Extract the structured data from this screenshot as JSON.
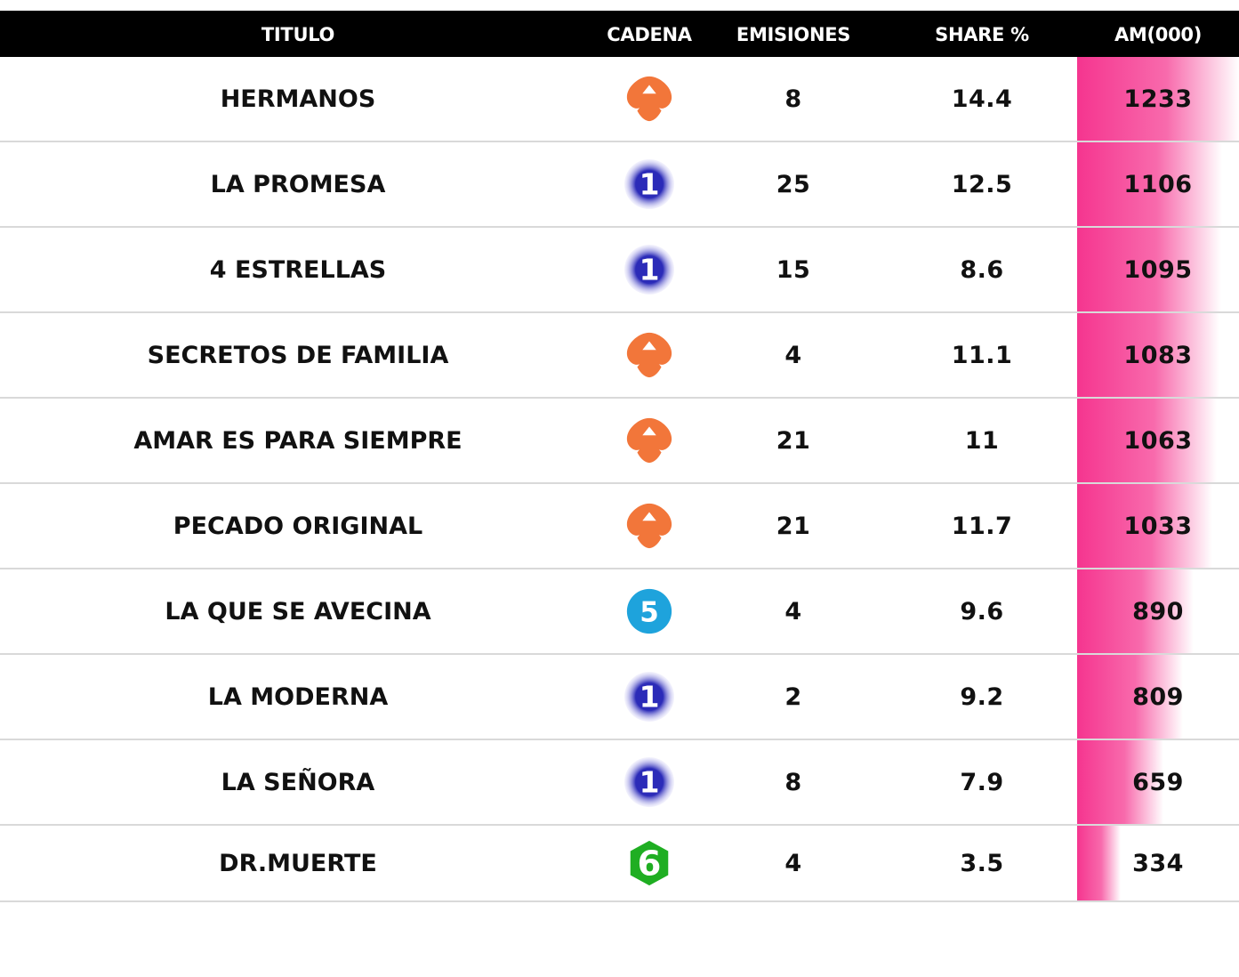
{
  "headers": {
    "titulo": "TITULO",
    "cadena": "CADENA",
    "emisiones": "EMISIONES",
    "share": "SHARE %",
    "am": "AM(000)"
  },
  "colors": {
    "header_bg": "#000000",
    "bar_pink": "#f5358f",
    "antena3": "#f2763a",
    "la1": "#2b2bb8",
    "telecinco": "#1ea3dc",
    "lasexta": "#1fae22"
  },
  "chart_data": {
    "type": "table",
    "columns": [
      "TITULO",
      "CADENA",
      "EMISIONES",
      "SHARE %",
      "AM(000)"
    ],
    "bar_column": "AM(000)",
    "bar_max": 1233,
    "rows": [
      {
        "titulo": "HERMANOS",
        "cadena": "antena3-logo",
        "emisiones": "8",
        "share": "14.4",
        "am": "1233",
        "am_value": 1233
      },
      {
        "titulo": "LA PROMESA",
        "cadena": "la1-logo",
        "emisiones": "25",
        "share": "12.5",
        "am": "1106",
        "am_value": 1106
      },
      {
        "titulo": "4 ESTRELLAS",
        "cadena": "la1-logo",
        "emisiones": "15",
        "share": "8.6",
        "am": "1095",
        "am_value": 1095
      },
      {
        "titulo": "SECRETOS DE FAMILIA",
        "cadena": "antena3-logo",
        "emisiones": "4",
        "share": "11.1",
        "am": "1083",
        "am_value": 1083
      },
      {
        "titulo": "AMAR ES PARA SIEMPRE",
        "cadena": "antena3-logo",
        "emisiones": "21",
        "share": "11",
        "am": "1063",
        "am_value": 1063
      },
      {
        "titulo": "PECADO ORIGINAL",
        "cadena": "antena3-logo",
        "emisiones": "21",
        "share": "11.7",
        "am": "1033",
        "am_value": 1033
      },
      {
        "titulo": "LA QUE SE AVECINA",
        "cadena": "telecinco-logo",
        "emisiones": "4",
        "share": "9.6",
        "am": "890",
        "am_value": 890
      },
      {
        "titulo": "LA MODERNA",
        "cadena": "la1-logo",
        "emisiones": "2",
        "share": "9.2",
        "am": "809",
        "am_value": 809
      },
      {
        "titulo": "LA SEÑORA",
        "cadena": "la1-logo",
        "emisiones": "8",
        "share": "7.9",
        "am": "659",
        "am_value": 659
      },
      {
        "titulo": "DR.MUERTE",
        "cadena": "lasexta-logo",
        "emisiones": "4",
        "share": "3.5",
        "am": "334",
        "am_value": 334
      }
    ]
  }
}
